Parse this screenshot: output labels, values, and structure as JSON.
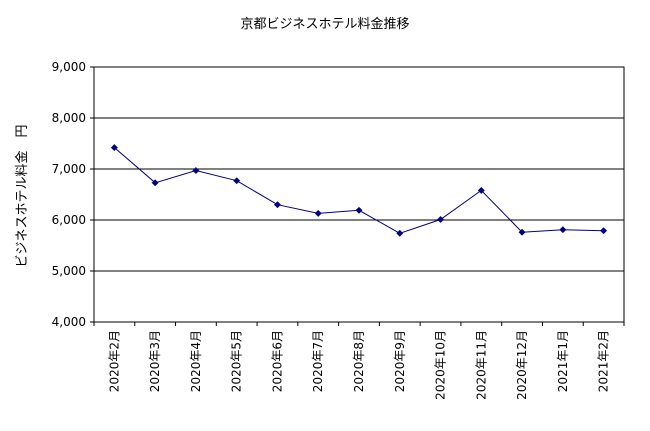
{
  "chart_data": {
    "type": "line",
    "title": "京都ビジネスホテル料金推移",
    "ylabel": "ビジネスホテル料金　円",
    "xlabel": "",
    "ylim": [
      4000,
      9000
    ],
    "ytick_step": 1000,
    "yticks": [
      "4,000",
      "5,000",
      "6,000",
      "7,000",
      "8,000",
      "9,000"
    ],
    "categories": [
      "2020年2月",
      "2020年3月",
      "2020年4月",
      "2020年5月",
      "2020年6月",
      "2020年7月",
      "2020年8月",
      "2020年9月",
      "2020年10月",
      "2020年11月",
      "2020年12月",
      "2021年1月",
      "2021年2月"
    ],
    "series": [
      {
        "values": [
          7420,
          6730,
          6970,
          6770,
          6300,
          6130,
          6190,
          5740,
          6010,
          6580,
          5760,
          5810,
          5790
        ]
      }
    ],
    "grid": true,
    "legend": "none",
    "line_color": "#000080",
    "plot_background": "#ffffff"
  }
}
